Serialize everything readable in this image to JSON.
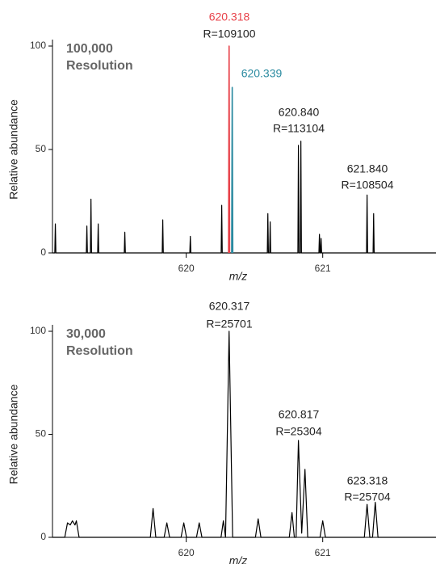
{
  "chart_data": [
    {
      "type": "line",
      "panel_label": [
        "100,000",
        "Resolution"
      ],
      "y_label": "Relative abundance",
      "x_label": "m/z",
      "xlim": [
        619.02,
        621.83
      ],
      "ylim": [
        0,
        100
      ],
      "xticks": [
        620,
        621
      ],
      "yticks": [
        0,
        50,
        100
      ],
      "series": [
        {
          "color": "#000000",
          "x": [
            619.02,
            619.037,
            619.041,
            619.045,
            619.268,
            619.272,
            619.276,
            619.298,
            619.302,
            619.306,
            619.351,
            619.355,
            619.359,
            619.546,
            619.55,
            619.554,
            619.824,
            619.828,
            619.832,
            620.026,
            620.03,
            620.034,
            620.256,
            620.26,
            620.264,
            620.594,
            620.598,
            620.602,
            620.611,
            620.615,
            620.619,
            620.818,
            620.822,
            620.826,
            620.836,
            620.84,
            620.844,
            620.972,
            620.976,
            620.98,
            620.984,
            620.988,
            620.992,
            621.321,
            621.325,
            621.329,
            621.369,
            621.373,
            621.377,
            621.83
          ],
          "values": [
            0,
            0,
            14,
            0,
            0,
            13,
            0,
            0,
            26,
            0,
            0,
            14,
            0,
            0,
            10,
            0,
            0,
            16,
            0,
            0,
            8,
            0,
            0,
            23,
            0,
            0,
            19,
            0,
            0,
            15,
            0,
            0,
            52,
            0,
            0,
            54,
            0,
            0,
            9,
            0,
            0,
            7,
            0,
            0,
            28,
            0,
            0,
            19,
            0,
            0
          ]
        },
        {
          "color": "#e8424a",
          "x": [
            620.31,
            620.314,
            620.318
          ],
          "values": [
            0,
            100,
            0
          ]
        },
        {
          "color": "#2a8aa0",
          "x": [
            620.333,
            620.337,
            620.341
          ],
          "values": [
            0,
            80,
            0
          ]
        }
      ],
      "annotations": [
        {
          "text": "620.318",
          "color": "#e8424a"
        },
        {
          "text": "R=109100",
          "color": "#222222"
        },
        {
          "text": "620.339",
          "color": "#2a8aa0"
        },
        {
          "text": "620.840",
          "color": "#222222"
        },
        {
          "text": "R=113104",
          "color": "#222222"
        },
        {
          "text": "621.840",
          "color": "#222222"
        },
        {
          "text": "R=108504",
          "color": "#222222"
        }
      ]
    },
    {
      "type": "line",
      "panel_label": [
        "30,000",
        "Resolution"
      ],
      "y_label": "Relative abundance",
      "x_label": "m/z",
      "xlim": [
        619.02,
        621.83
      ],
      "ylim": [
        0,
        100
      ],
      "xticks": [
        620,
        621
      ],
      "yticks": [
        0,
        50,
        100
      ],
      "series": [
        {
          "color": "#000000",
          "x": [
            619.02,
            619.11,
            619.13,
            619.15,
            619.166,
            619.185,
            619.195,
            619.215,
            619.737,
            619.757,
            619.777,
            619.838,
            619.858,
            619.878,
            619.962,
            619.982,
            620.002,
            620.075,
            620.095,
            620.115,
            620.255,
            620.272,
            620.288,
            620.314,
            620.34,
            620.507,
            620.527,
            620.547,
            620.755,
            620.775,
            620.792,
            620.805,
            620.822,
            620.846,
            620.87,
            620.89,
            620.98,
            621.0,
            621.02,
            621.305,
            621.325,
            621.345,
            621.365,
            621.385,
            621.405,
            621.83
          ],
          "values": [
            0,
            0,
            7,
            6,
            8,
            6,
            8,
            0,
            0,
            14,
            0,
            0,
            7,
            0,
            0,
            7,
            0,
            0,
            7,
            0,
            0,
            8,
            0,
            100,
            0,
            0,
            9,
            0,
            0,
            12,
            0,
            0,
            47,
            2,
            33,
            0,
            0,
            8,
            0,
            0,
            16,
            0,
            0,
            17,
            0,
            0
          ]
        }
      ],
      "annotations": [
        {
          "text": "620.317",
          "color": "#222222"
        },
        {
          "text": "R=25701",
          "color": "#222222"
        },
        {
          "text": "620.817",
          "color": "#222222"
        },
        {
          "text": "R=25304",
          "color": "#222222"
        },
        {
          "text": "623.318",
          "color": "#222222"
        },
        {
          "text": "R=25704",
          "color": "#222222"
        }
      ]
    }
  ]
}
